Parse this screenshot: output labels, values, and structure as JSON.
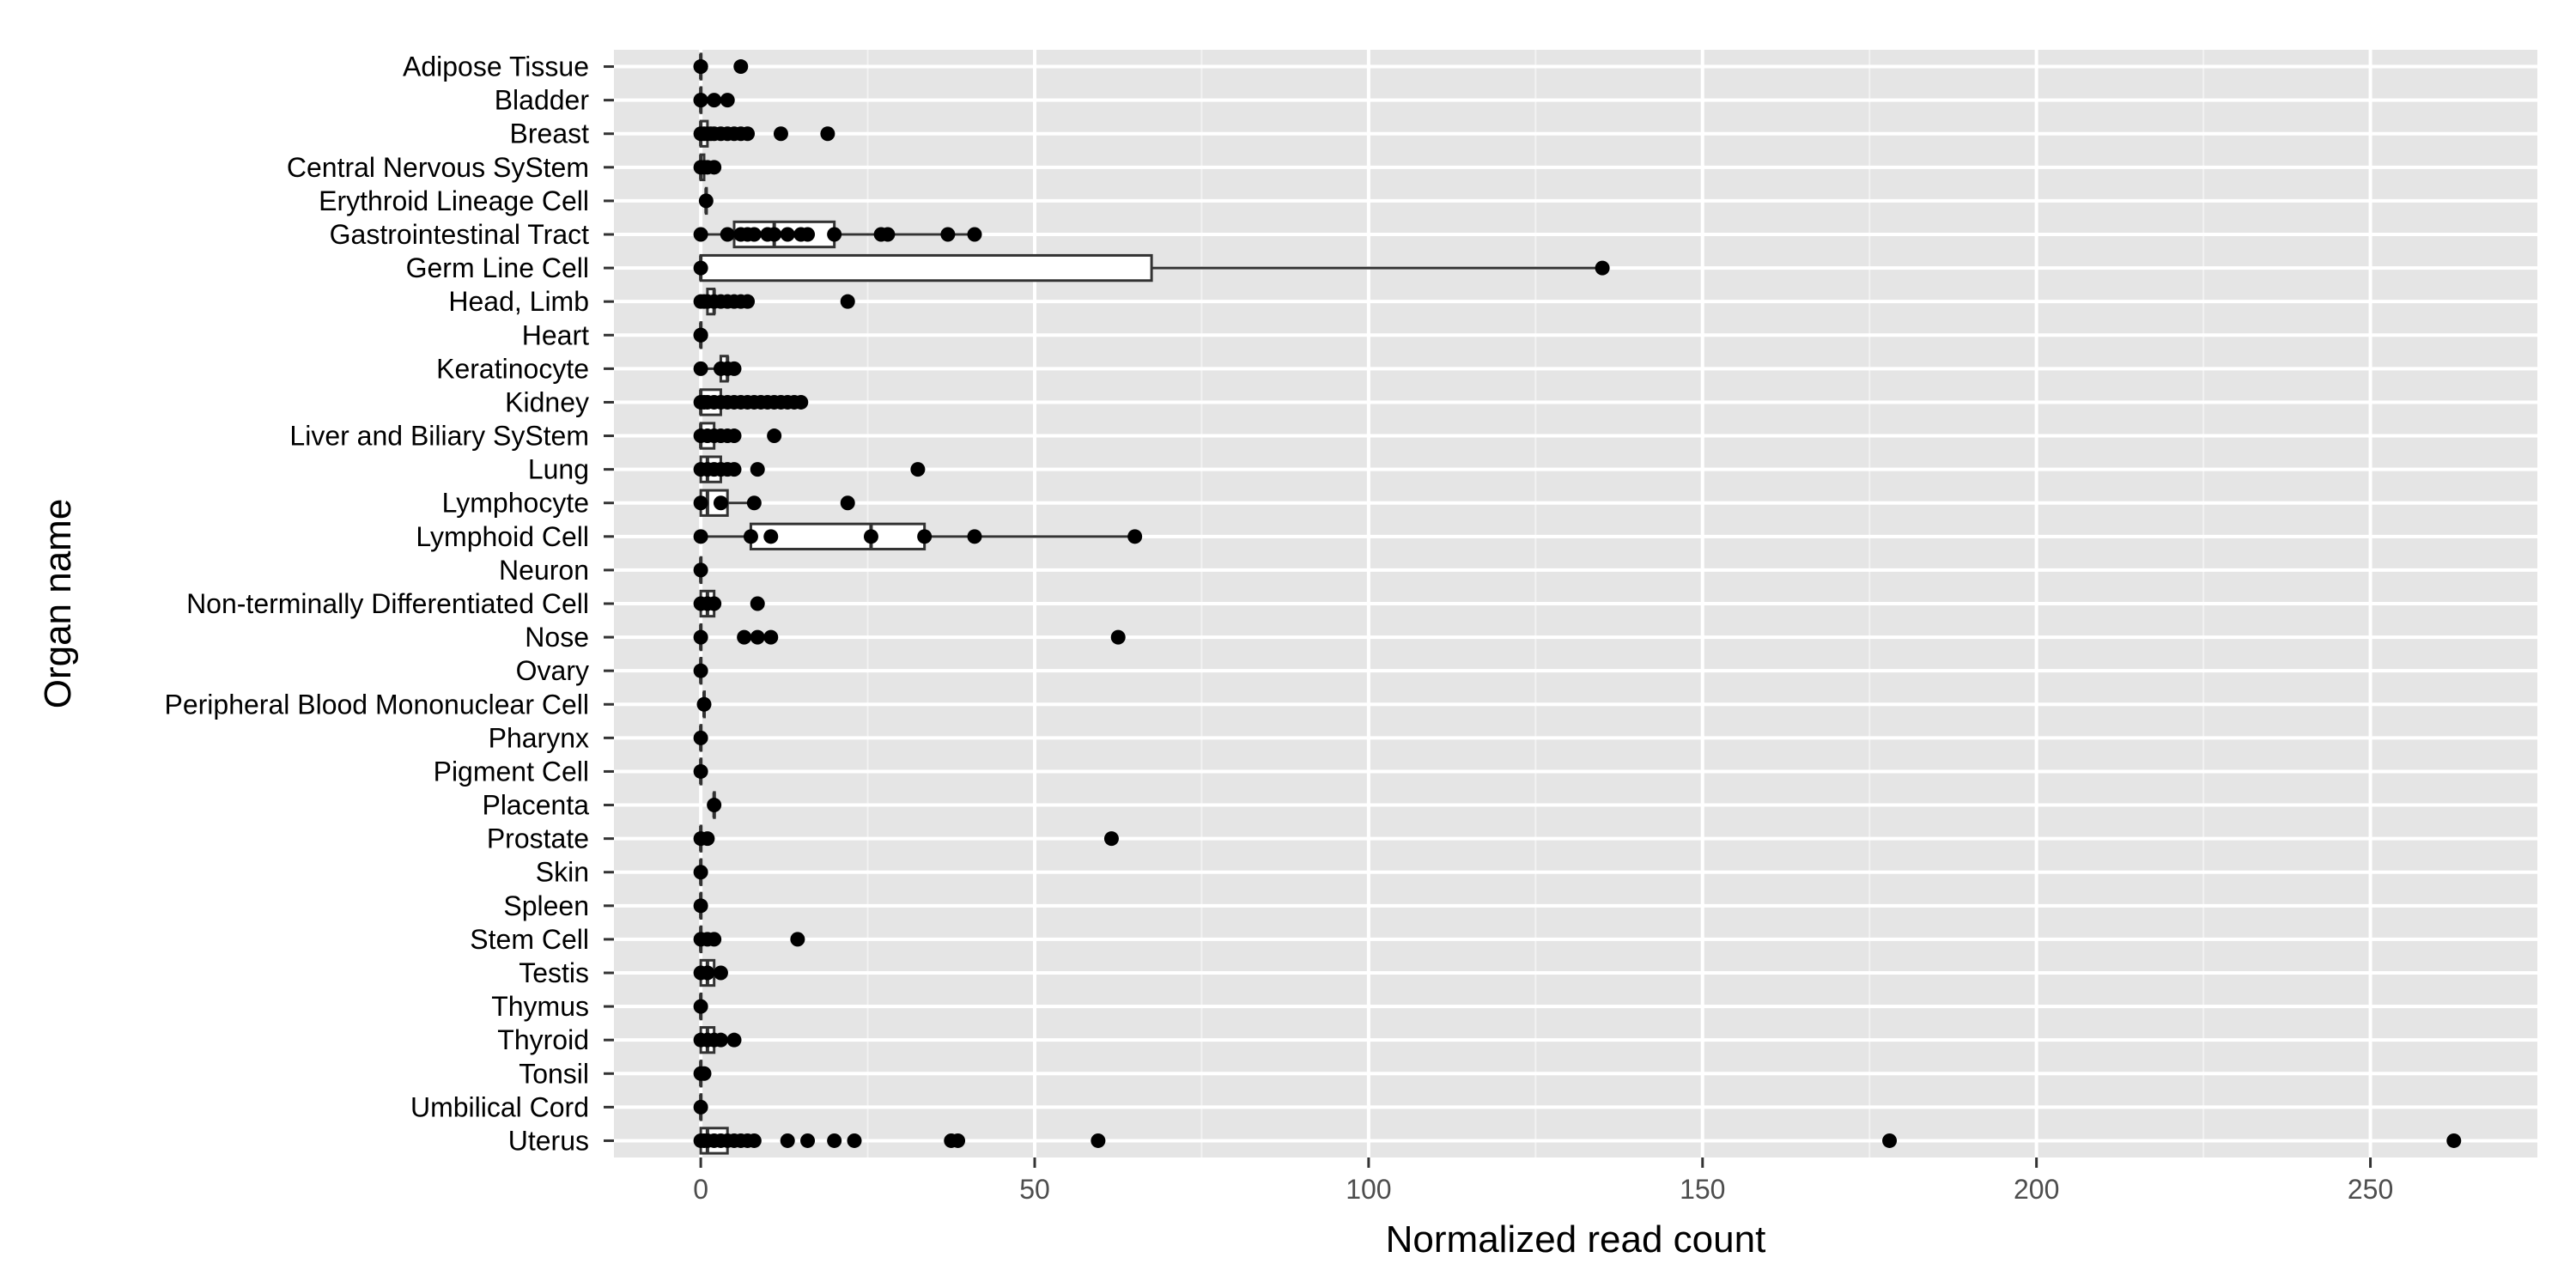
{
  "chart_data": {
    "type": "boxplot",
    "orientation": "horizontal",
    "title": "",
    "xlabel": "Normalized read count",
    "ylabel": "Organ name",
    "xlim": [
      -13,
      275
    ],
    "xticks": [
      0,
      50,
      100,
      150,
      200,
      250
    ],
    "grid": true,
    "legend": "none",
    "colors": {
      "panel": "#e5e5e5",
      "grid": "#ffffff",
      "point": "#000000",
      "box_fill": "#ffffff",
      "box_stroke": "#333333"
    },
    "categories": [
      "Adipose Tissue",
      "Bladder",
      "Breast",
      "Central Nervous SyStem",
      "Erythroid Lineage Cell",
      "Gastrointestinal Tract",
      "Germ Line Cell",
      "Head, Limb",
      "Heart",
      "Keratinocyte",
      "Kidney",
      "Liver and Biliary SyStem",
      "Lung",
      "Lymphocyte",
      "Lymphoid Cell",
      "Neuron",
      "Non-terminally Differentiated Cell",
      "Nose",
      "Ovary",
      "Peripheral Blood Mononuclear Cell",
      "Pharynx",
      "Pigment Cell",
      "Placenta",
      "Prostate",
      "Skin",
      "Spleen",
      "Stem Cell",
      "Testis",
      "Thymus",
      "Thyroid",
      "Tonsil",
      "Umbilical Cord",
      "Uterus"
    ],
    "series": [
      {
        "category": "Adipose Tissue",
        "box": [
          0,
          0,
          0,
          0,
          0
        ],
        "points": [
          0,
          0,
          6
        ]
      },
      {
        "category": "Bladder",
        "box": [
          0,
          0,
          0,
          0,
          0
        ],
        "points": [
          0,
          0,
          2,
          4
        ]
      },
      {
        "category": "Breast",
        "box": [
          0,
          0,
          0,
          1,
          3
        ],
        "points": [
          0,
          0.5,
          1,
          1.5,
          2,
          3,
          4,
          5,
          6,
          7,
          12,
          19
        ]
      },
      {
        "category": "Central Nervous SyStem",
        "box": [
          0,
          0,
          0,
          0.5,
          1
        ],
        "points": [
          0,
          0.5,
          1,
          2
        ]
      },
      {
        "category": "Erythroid Lineage Cell",
        "box": [
          0.8,
          0.8,
          0.8,
          0.8,
          0.8
        ],
        "points": [
          0.8
        ]
      },
      {
        "category": "Gastrointestinal Tract",
        "box": [
          0,
          5,
          11,
          20,
          41
        ],
        "points": [
          0,
          4,
          6,
          7,
          8,
          10,
          11,
          13,
          15,
          16,
          20,
          27,
          28,
          37,
          41
        ]
      },
      {
        "category": "Germ Line Cell",
        "box": [
          0,
          0,
          0,
          67.5,
          135
        ],
        "points": [
          0,
          135
        ]
      },
      {
        "category": "Head, Limb",
        "box": [
          0,
          1,
          2,
          2,
          7
        ],
        "points": [
          0,
          0.5,
          1,
          2,
          3,
          4,
          5,
          6,
          7,
          22
        ]
      },
      {
        "category": "Heart",
        "box": [
          0,
          0,
          0,
          0,
          0
        ],
        "points": [
          0,
          0
        ]
      },
      {
        "category": "Keratinocyte",
        "box": [
          0,
          3,
          4,
          4,
          5
        ],
        "points": [
          0,
          3,
          4,
          5
        ]
      },
      {
        "category": "Kidney",
        "box": [
          0,
          0,
          0,
          3,
          7
        ],
        "points": [
          0,
          0.5,
          1,
          2,
          3,
          4,
          5,
          6,
          7,
          8,
          9,
          10,
          11,
          12,
          13,
          14,
          15
        ]
      },
      {
        "category": "Liver and Biliary SyStem",
        "box": [
          0,
          0,
          0,
          2,
          3
        ],
        "points": [
          0,
          1,
          2,
          3,
          4,
          5,
          11
        ]
      },
      {
        "category": "Lung",
        "box": [
          0,
          0,
          1,
          3,
          5
        ],
        "points": [
          0,
          1,
          2,
          3,
          4,
          5,
          8.5,
          32.5
        ]
      },
      {
        "category": "Lymphocyte",
        "box": [
          0,
          0,
          1,
          4,
          8
        ],
        "points": [
          0,
          3,
          8,
          22
        ]
      },
      {
        "category": "Lymphoid Cell",
        "box": [
          0,
          7.5,
          25.5,
          33.5,
          65
        ],
        "points": [
          0,
          7.5,
          10.5,
          25.5,
          33.5,
          41,
          65
        ]
      },
      {
        "category": "Neuron",
        "box": [
          0,
          0,
          0,
          0,
          0
        ],
        "points": [
          0
        ]
      },
      {
        "category": "Non-terminally Differentiated Cell",
        "box": [
          0,
          0,
          1,
          2,
          2
        ],
        "points": [
          0,
          1,
          2,
          8.5
        ]
      },
      {
        "category": "Nose",
        "box": [
          0,
          0,
          0,
          0,
          0
        ],
        "points": [
          0,
          6.5,
          8.5,
          10.5,
          62.5
        ]
      },
      {
        "category": "Ovary",
        "box": [
          0,
          0,
          0,
          0,
          0
        ],
        "points": [
          0
        ]
      },
      {
        "category": "Peripheral Blood Mononuclear Cell",
        "box": [
          0.5,
          0.5,
          0.5,
          0.5,
          0.5
        ],
        "points": [
          0.5
        ]
      },
      {
        "category": "Pharynx",
        "box": [
          0,
          0,
          0,
          0,
          0
        ],
        "points": [
          0
        ]
      },
      {
        "category": "Pigment Cell",
        "box": [
          0,
          0,
          0,
          0,
          0
        ],
        "points": [
          0
        ]
      },
      {
        "category": "Placenta",
        "box": [
          2,
          2,
          2,
          2,
          2
        ],
        "points": [
          2
        ]
      },
      {
        "category": "Prostate",
        "box": [
          0,
          0,
          0,
          0,
          0
        ],
        "points": [
          0,
          1,
          61.5
        ]
      },
      {
        "category": "Skin",
        "box": [
          0,
          0,
          0,
          0,
          0
        ],
        "points": [
          0
        ]
      },
      {
        "category": "Spleen",
        "box": [
          0,
          0,
          0,
          0,
          0
        ],
        "points": [
          0
        ]
      },
      {
        "category": "Stem Cell",
        "box": [
          0,
          0,
          0,
          0,
          0
        ],
        "points": [
          0,
          1,
          2,
          14.5
        ]
      },
      {
        "category": "Testis",
        "box": [
          0,
          0,
          1,
          2,
          3
        ],
        "points": [
          0,
          1,
          3
        ]
      },
      {
        "category": "Thymus",
        "box": [
          0,
          0,
          0,
          0,
          0
        ],
        "points": [
          0
        ]
      },
      {
        "category": "Thyroid",
        "box": [
          0,
          0,
          1,
          2,
          3
        ],
        "points": [
          0,
          1,
          2,
          3,
          5
        ]
      },
      {
        "category": "Tonsil",
        "box": [
          0,
          0,
          0,
          0,
          0
        ],
        "points": [
          0,
          0.5
        ]
      },
      {
        "category": "Umbilical Cord",
        "box": [
          0,
          0,
          0,
          0,
          0
        ],
        "points": [
          0
        ]
      },
      {
        "category": "Uterus",
        "box": [
          0,
          0,
          1,
          4,
          8
        ],
        "points": [
          0,
          0.5,
          1,
          2,
          3,
          4,
          5,
          6,
          7,
          8,
          13,
          16,
          20,
          23,
          37.5,
          38.5,
          59.5,
          178,
          262.5
        ]
      }
    ]
  }
}
